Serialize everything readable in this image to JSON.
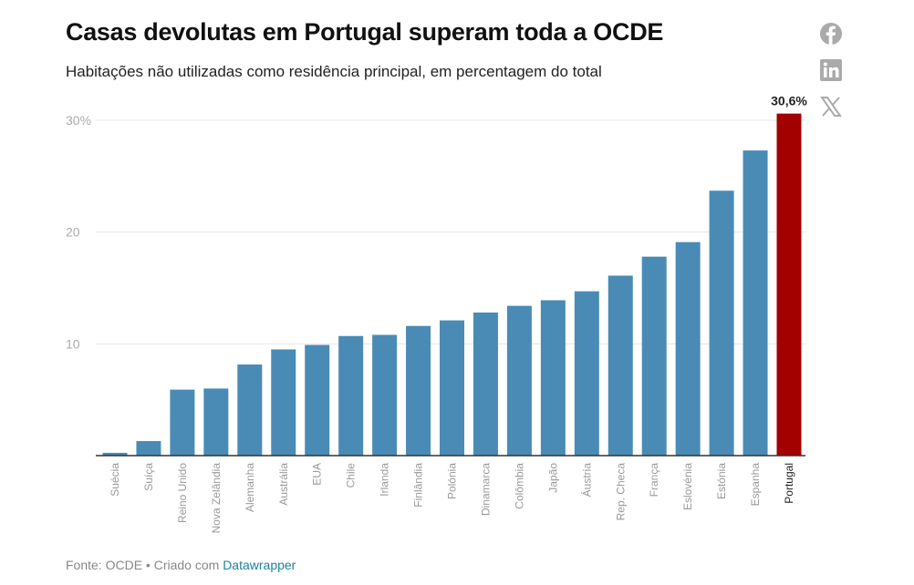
{
  "header": {
    "title": "Casas devolutas em Portugal superam toda a OCDE",
    "subtitle": "Habitações não utilizadas como residência principal, em percentagem do total"
  },
  "footer": {
    "source": "Fonte: OCDE • Criado com ",
    "link": "Datawrapper"
  },
  "share": [
    "facebook-icon",
    "linkedin-icon",
    "x-icon"
  ],
  "chart_data": {
    "type": "bar",
    "categories": [
      "Suécia",
      "Suíça",
      "Reino Unido",
      "Nova Zelândia",
      "Alemanha",
      "Austrália",
      "EUA",
      "Chile",
      "Irlanda",
      "Finlândia",
      "Polónia",
      "Dinamarca",
      "Colômbia",
      "Japão",
      "Áustria",
      "Rep. Checa",
      "França",
      "Eslovénia",
      "Estónia",
      "Espanha",
      "Portugal"
    ],
    "values": [
      0.25,
      1.3,
      5.9,
      6.0,
      8.15,
      9.5,
      9.9,
      10.7,
      10.8,
      11.6,
      12.1,
      12.8,
      13.4,
      13.9,
      14.7,
      16.1,
      17.8,
      19.1,
      23.7,
      27.3,
      30.6
    ],
    "highlight": "Portugal",
    "highlight_label": "30,6%",
    "yticks": [
      "10",
      "20",
      "30%"
    ],
    "ytick_values": [
      10,
      20,
      30
    ],
    "ylim": [
      0,
      30
    ],
    "grid": true,
    "colors": {
      "bar": "#4a8bb5",
      "highlight": "#a30000"
    }
  }
}
